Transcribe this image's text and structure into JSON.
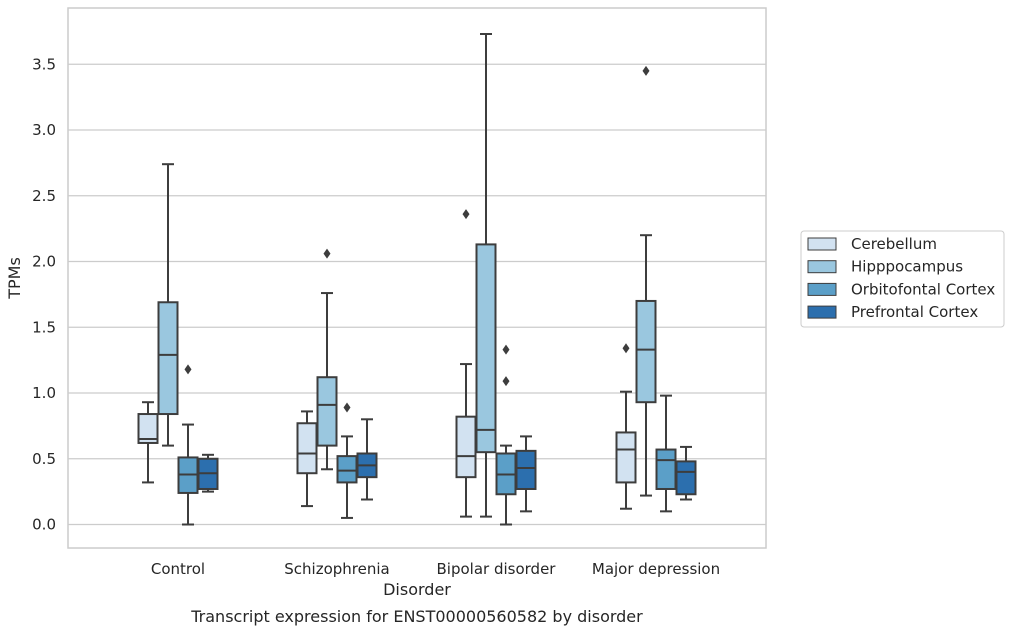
{
  "chart_data": {
    "type": "boxplot",
    "title": "",
    "caption": "Transcript expression for ENST00000560582 by disorder",
    "xlabel": "Disorder",
    "ylabel": "TPMs",
    "ylim": [
      -0.18,
      3.9
    ],
    "yticks": [
      "0.0",
      "0.5",
      "1.0",
      "1.5",
      "2.0",
      "2.5",
      "3.0",
      "3.5"
    ],
    "grid": "horizontal",
    "legend_position": "right",
    "categories": [
      "Control",
      "Schizophrenia",
      "Bipolar disorder",
      "Major depression"
    ],
    "series": [
      {
        "name": "Cerebellum",
        "color": "#d2e2f1",
        "boxes": [
          {
            "whislo": 0.32,
            "q1": 0.62,
            "med": 0.65,
            "q3": 0.84,
            "whishi": 0.93,
            "fliers": []
          },
          {
            "whislo": 0.14,
            "q1": 0.39,
            "med": 0.54,
            "q3": 0.77,
            "whishi": 0.86,
            "fliers": []
          },
          {
            "whislo": 0.06,
            "q1": 0.36,
            "med": 0.52,
            "q3": 0.82,
            "whishi": 1.22,
            "fliers": [
              2.36
            ]
          },
          {
            "whislo": 0.12,
            "q1": 0.32,
            "med": 0.57,
            "q3": 0.7,
            "whishi": 1.01,
            "fliers": [
              1.34
            ]
          }
        ]
      },
      {
        "name": "Hipppocampus",
        "color": "#9ac7df",
        "boxes": [
          {
            "whislo": 0.6,
            "q1": 0.84,
            "med": 1.29,
            "q3": 1.69,
            "whishi": 2.74,
            "fliers": []
          },
          {
            "whislo": 0.42,
            "q1": 0.6,
            "med": 0.91,
            "q3": 1.12,
            "whishi": 1.76,
            "fliers": [
              2.06
            ]
          },
          {
            "whislo": 0.06,
            "q1": 0.55,
            "med": 0.72,
            "q3": 2.13,
            "whishi": 3.73,
            "fliers": []
          },
          {
            "whislo": 0.22,
            "q1": 0.93,
            "med": 1.33,
            "q3": 1.7,
            "whishi": 2.2,
            "fliers": [
              3.45
            ]
          }
        ]
      },
      {
        "name": "Orbitofontal Cortex",
        "color": "#5b9fc8",
        "boxes": [
          {
            "whislo": 0.0,
            "q1": 0.24,
            "med": 0.38,
            "q3": 0.51,
            "whishi": 0.76,
            "fliers": [
              1.18
            ]
          },
          {
            "whislo": 0.05,
            "q1": 0.32,
            "med": 0.41,
            "q3": 0.52,
            "whishi": 0.67,
            "fliers": [
              0.89
            ]
          },
          {
            "whislo": 0.0,
            "q1": 0.23,
            "med": 0.38,
            "q3": 0.54,
            "whishi": 0.6,
            "fliers": [
              1.09,
              1.33
            ]
          },
          {
            "whislo": 0.1,
            "q1": 0.27,
            "med": 0.49,
            "q3": 0.57,
            "whishi": 0.98,
            "fliers": []
          }
        ]
      },
      {
        "name": "Prefrontal Cortex",
        "color": "#2c6fae",
        "boxes": [
          {
            "whislo": 0.25,
            "q1": 0.27,
            "med": 0.39,
            "q3": 0.5,
            "whishi": 0.53,
            "fliers": []
          },
          {
            "whislo": 0.19,
            "q1": 0.36,
            "med": 0.45,
            "q3": 0.54,
            "whishi": 0.8,
            "fliers": []
          },
          {
            "whislo": 0.1,
            "q1": 0.27,
            "med": 0.43,
            "q3": 0.56,
            "whishi": 0.67,
            "fliers": []
          },
          {
            "whislo": 0.19,
            "q1": 0.23,
            "med": 0.4,
            "q3": 0.48,
            "whishi": 0.59,
            "fliers": []
          }
        ]
      }
    ]
  }
}
